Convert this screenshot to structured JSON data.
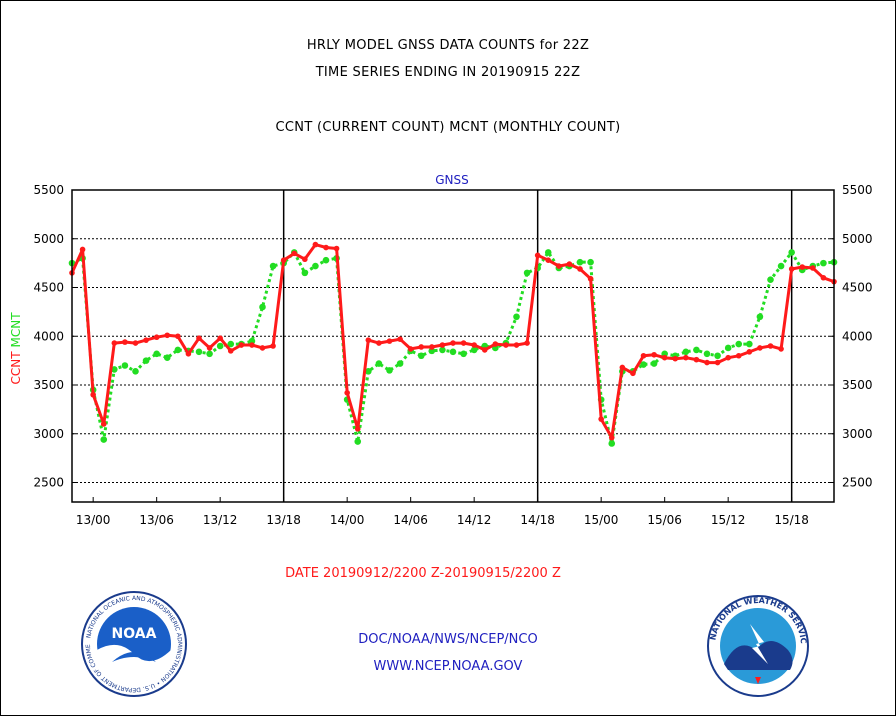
{
  "header": {
    "title_line1": "HRLY MODEL GNSS DATA COUNTS for 22Z",
    "title_line2": "TIME SERIES ENDING IN 20190915 22Z",
    "title_line3": "CCNT (CURRENT COUNT) MCNT (MONTHLY COUNT)"
  },
  "footer": {
    "date_range": "DATE 20190912/2200 Z-20190915/2200 Z",
    "org": "DOC/NOAA/NWS/NCEP/NCO",
    "url": "WWW.NCEP.NOAA.GOV"
  },
  "logos": {
    "noaa_text": "NOAA",
    "noaa_ring": "NATIONAL OCEANIC AND ATMOSPHERIC ADMINISTRATION • U.S. DEPARTMENT OF COMMERCE •",
    "nws_ring": "NATIONAL WEATHER SERVICE"
  },
  "colors": {
    "ccnt": "#ff1a1a",
    "mcnt": "#22dd22",
    "footer": "#2020c0",
    "panel": "#000000"
  },
  "chart_data": {
    "type": "line",
    "title": "GNSS",
    "ylabel_left": [
      "CCNT",
      "MCNT"
    ],
    "ylim": [
      2300,
      5500
    ],
    "yticks": [
      2500,
      3000,
      3500,
      4000,
      4500,
      5000,
      5500
    ],
    "xlim": [
      0,
      72
    ],
    "x_unit": "hours since 20190912/2200 Z",
    "xticks": [
      {
        "x": 2,
        "label": "13/00"
      },
      {
        "x": 8,
        "label": "13/06"
      },
      {
        "x": 14,
        "label": "13/12"
      },
      {
        "x": 20,
        "label": "13/18"
      },
      {
        "x": 26,
        "label": "14/00"
      },
      {
        "x": 32,
        "label": "14/06"
      },
      {
        "x": 38,
        "label": "14/12"
      },
      {
        "x": 44,
        "label": "14/18"
      },
      {
        "x": 50,
        "label": "15/00"
      },
      {
        "x": 56,
        "label": "15/06"
      },
      {
        "x": 62,
        "label": "15/12"
      },
      {
        "x": 68,
        "label": "15/18"
      }
    ],
    "vlines_major": [
      20,
      44,
      68
    ],
    "grid": true,
    "series": [
      {
        "name": "CCNT",
        "color": "#ff1a1a",
        "values": [
          4650,
          4890,
          3400,
          3100,
          3930,
          3940,
          3930,
          3960,
          3990,
          4010,
          4000,
          3820,
          3980,
          3880,
          3980,
          3850,
          3910,
          3910,
          3880,
          3900,
          4780,
          4850,
          4790,
          4940,
          4910,
          4900,
          3420,
          3050,
          3960,
          3930,
          3950,
          3970,
          3870,
          3890,
          3890,
          3910,
          3930,
          3930,
          3910,
          3860,
          3920,
          3910,
          3910,
          3930,
          4830,
          4780,
          4720,
          4740,
          4690,
          4590,
          3150,
          2960,
          3680,
          3620,
          3800,
          3810,
          3780,
          3770,
          3780,
          3760,
          3730,
          3730,
          3780,
          3800,
          3840,
          3880,
          3900,
          3870,
          4690,
          4710,
          4700,
          4600,
          4560
        ]
      },
      {
        "name": "MCNT",
        "color": "#22dd22",
        "values": [
          4750,
          4800,
          3450,
          2940,
          3660,
          3700,
          3640,
          3750,
          3820,
          3780,
          3860,
          3850,
          3840,
          3820,
          3900,
          3920,
          3920,
          3950,
          4300,
          4720,
          4750,
          4860,
          4650,
          4720,
          4780,
          4800,
          3350,
          2920,
          3640,
          3720,
          3650,
          3720,
          3850,
          3800,
          3850,
          3860,
          3840,
          3820,
          3860,
          3900,
          3880,
          3930,
          4200,
          4650,
          4700,
          4860,
          4700,
          4720,
          4760,
          4760,
          3350,
          2900,
          3640,
          3640,
          3710,
          3720,
          3820,
          3800,
          3840,
          3860,
          3820,
          3800,
          3880,
          3920,
          3920,
          4200,
          4580,
          4720,
          4860,
          4680,
          4720,
          4750,
          4760
        ]
      }
    ]
  }
}
